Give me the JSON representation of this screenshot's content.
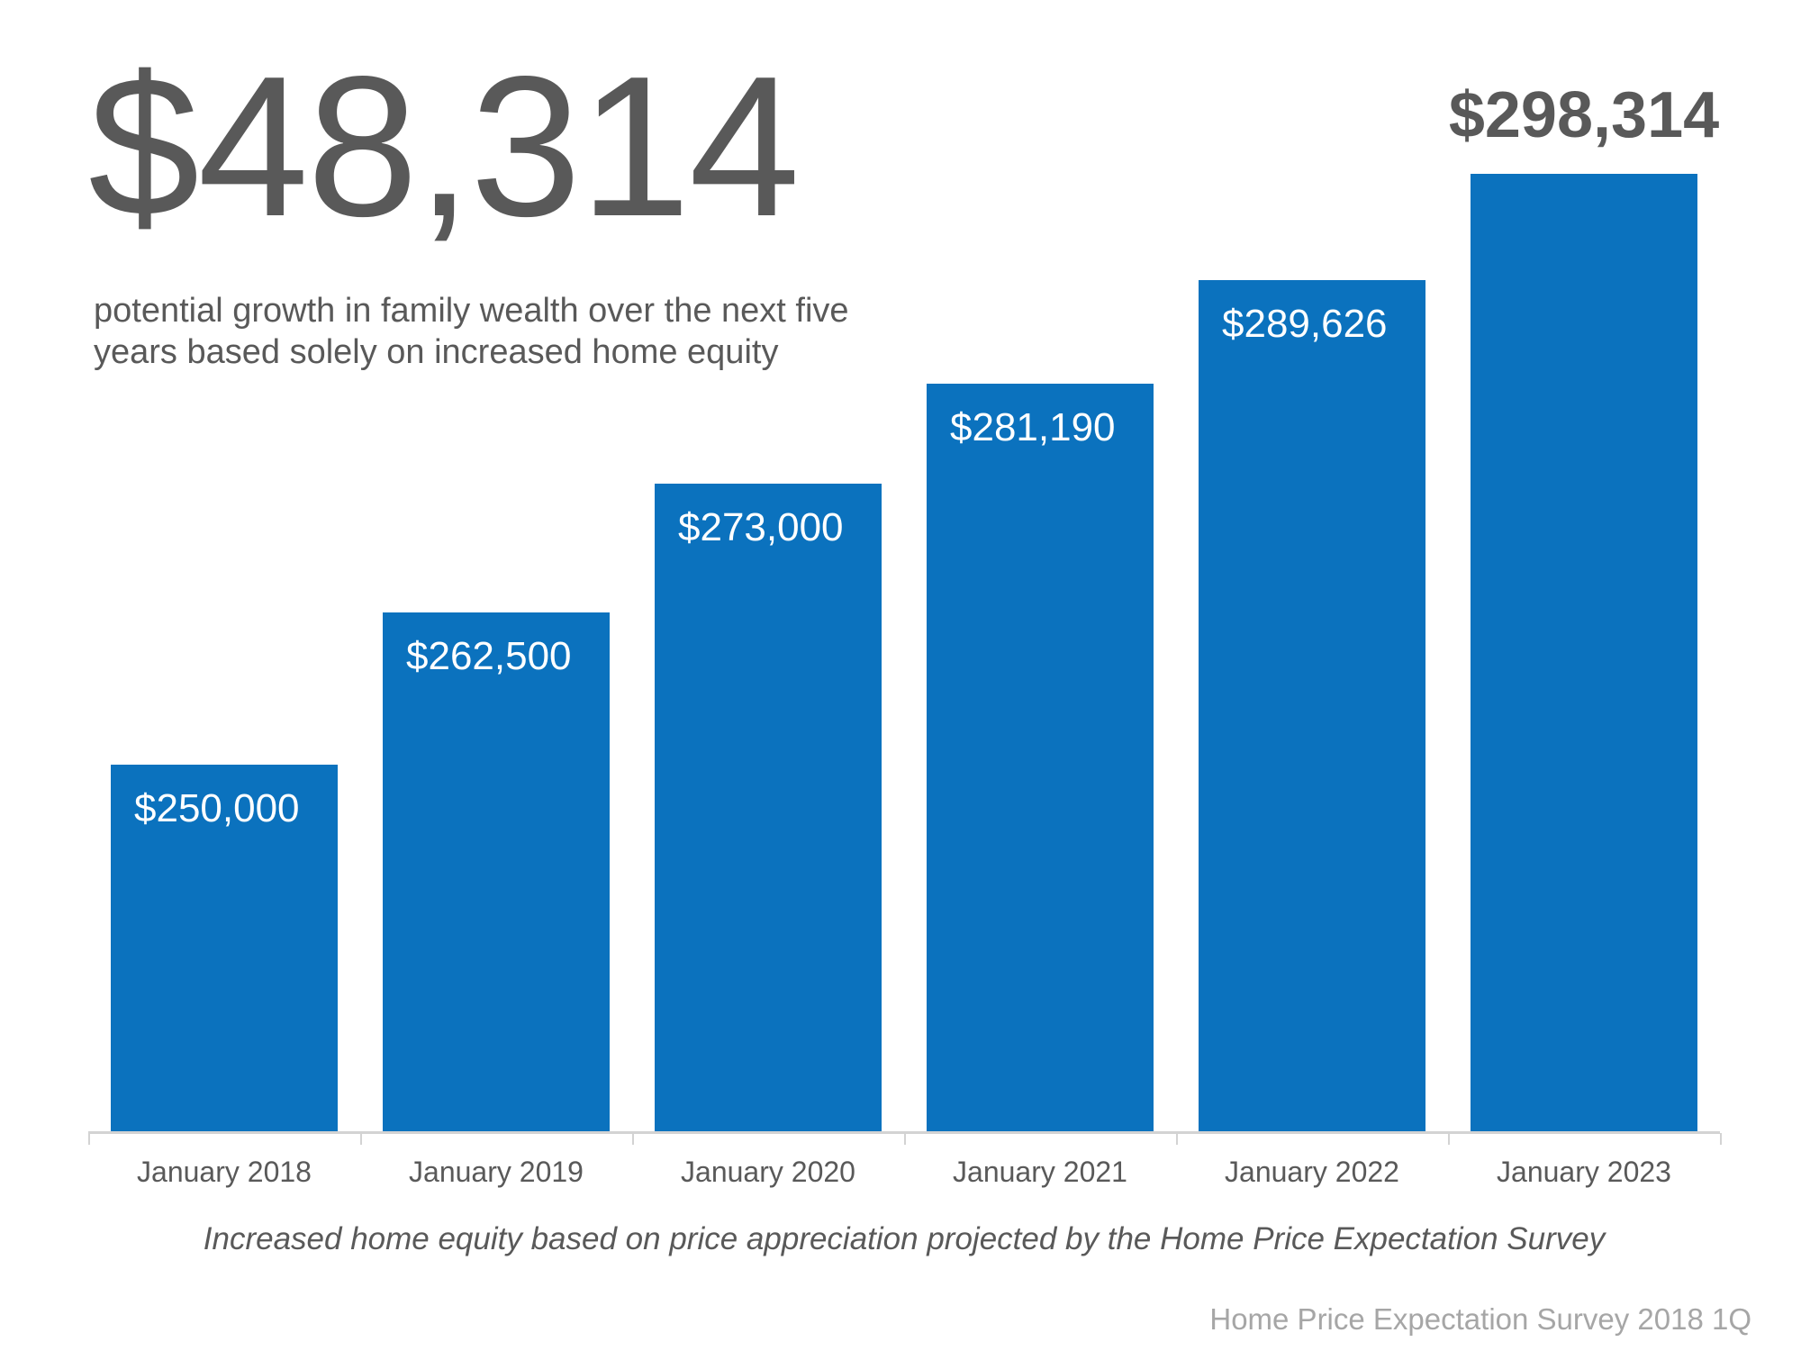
{
  "headline": {
    "value": "$48,314",
    "description": "potential growth in family wealth over the next five years based solely on increased home equity"
  },
  "caption": "Increased home equity based on price appreciation projected by the Home Price Expectation Survey",
  "source": "Home Price Expectation Survey 2018 1Q",
  "colors": {
    "bar": "#0B72BE",
    "text_dark": "#595959",
    "axis": "#D3D3D3",
    "source_text": "#A6A6A6",
    "inside_label": "#FFFFFF"
  },
  "chart_data": {
    "type": "bar",
    "title": "$48,314 potential growth in family wealth over the next five years based solely on increased home equity",
    "categories": [
      "January 2018",
      "January 2019",
      "January 2020",
      "January 2021",
      "January 2022",
      "January 2023"
    ],
    "values": [
      250000,
      262500,
      273000,
      281190,
      289626,
      298314
    ],
    "value_labels": [
      "$250,000",
      "$262,500",
      "$273,000",
      "$281,190",
      "$289,626",
      "$298,314"
    ],
    "label_positions": [
      "inside-top",
      "inside-top",
      "inside-top",
      "inside-top",
      "inside-top",
      "above"
    ],
    "xlabel": "",
    "ylabel": "",
    "ylim": [
      220000,
      298314
    ],
    "grid": false,
    "legend": false
  }
}
